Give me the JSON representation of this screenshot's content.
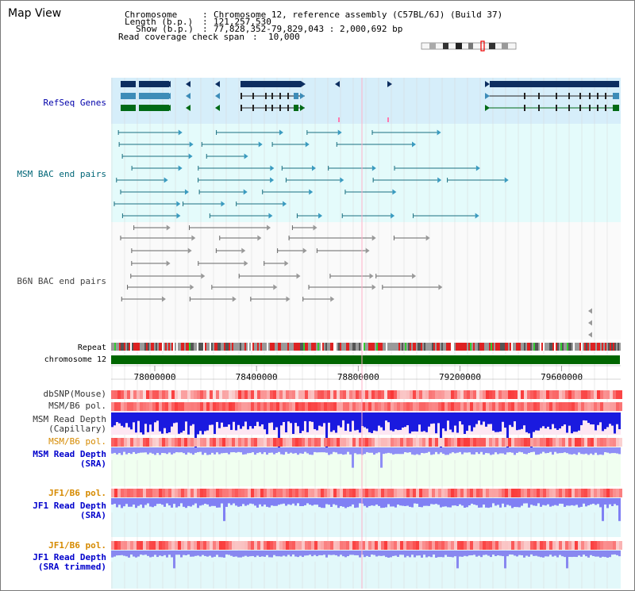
{
  "view": {
    "title": "Map View",
    "chromosome_label": "Chromosome",
    "chromosome_value": "Chromosome 12, reference assembly (C57BL/6J) (Build 37)",
    "length_label": "Length (b.p.)",
    "length_value": "121,257,530",
    "show_label": "Show (b.p.)",
    "show_value": "77,828,352-79,829,043 : 2,000,692 bp",
    "coverage_label": "Read coverage check span",
    "coverage_value": "10,000"
  },
  "tracks": {
    "refseq": "RefSeq Genes",
    "msm_bac": "MSM BAC end pairs",
    "b6n_bac": "B6N BAC end pairs",
    "repeat": "Repeat",
    "chromosome": "chromosome 12",
    "dbsnp": "dbSNP(Mouse)",
    "msm_b6_pol_1": "MSM/B6 pol.",
    "msm_depth_cap_1": "MSM Read Depth",
    "msm_depth_cap_2": "(Capillary)",
    "msm_b6_pol_2": "MSM/B6 pol.",
    "msm_depth_sra_1": "MSM Read Depth",
    "msm_depth_sra_2": "(SRA)",
    "jf1_b6_pol_1": "JF1/B6 pol.",
    "jf1_depth_sra_1": "JF1 Read Depth",
    "jf1_depth_sra_2": "(SRA)",
    "jf1_b6_pol_2": "JF1/B6 pol.",
    "jf1_depth_trim_1": "JF1 Read Depth",
    "jf1_depth_trim_2": "(SRA trimmed)"
  },
  "axis": {
    "range": [
      77828352,
      79829043
    ],
    "ticks": [
      "78000000",
      "78400000",
      "78800000",
      "79200000",
      "79600000"
    ]
  },
  "colors": {
    "refseq_label": "#0000aa",
    "msm_label": "#006677",
    "b6n_label": "#444444",
    "pol_label": "#d68a00",
    "depth_label": "#0000cc",
    "snp_label": "#333333",
    "chromosome_bar": "#006600",
    "depth_fill": "#3d3dff"
  }
}
